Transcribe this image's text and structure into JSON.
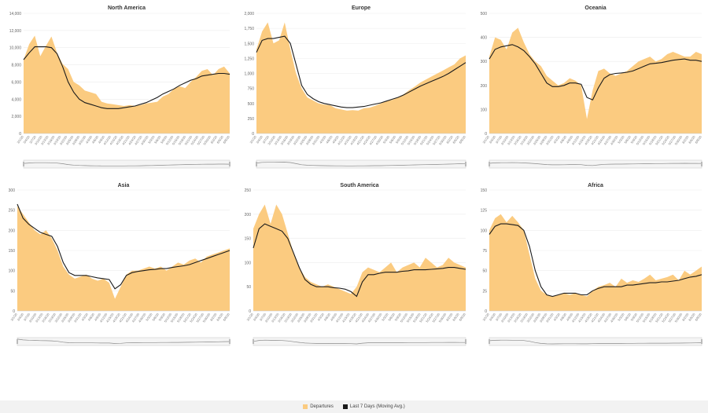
{
  "legend": {
    "departures_label": "Departures",
    "avg_label": "Last 7 Days (Moving Avg.)",
    "departures_color": "#fbcb80",
    "avg_color": "#1a1a1a"
  },
  "chart_data": [
    {
      "type": "area",
      "title": "North America",
      "ylim": [
        0,
        14000
      ],
      "yticks": [
        "0",
        "2,000",
        "4,000",
        "6,000",
        "8,000",
        "10,000",
        "12,000",
        "14,000"
      ],
      "ytick_values": [
        0,
        2000,
        4000,
        6000,
        8000,
        10000,
        12000,
        14000
      ],
      "x_start": "3/1/20",
      "x_end": "6/9/20",
      "series": [
        {
          "values": [
            8600,
            10400,
            11400,
            9000,
            10200,
            11300,
            9400,
            8100,
            7500,
            6000,
            5600,
            5000,
            4800,
            4600,
            3700,
            3500,
            3400,
            3300,
            3200,
            3300,
            3200,
            3300,
            3500,
            3600,
            3700,
            4300,
            4600,
            5200,
            5500,
            5300,
            6000,
            6600,
            7300,
            7500,
            6800,
            7500,
            7800,
            7000
          ]
        },
        {
          "values": [
            8600,
            9400,
            10100,
            10100,
            10100,
            10000,
            9300,
            7800,
            6000,
            4800,
            4000,
            3600,
            3400,
            3200,
            3000,
            2900,
            2900,
            2900,
            3000,
            3100,
            3200,
            3400,
            3600,
            3900,
            4200,
            4600,
            4900,
            5200,
            5600,
            5900,
            6200,
            6400,
            6700,
            6800,
            6900,
            7000,
            7000,
            6900
          ]
        }
      ]
    },
    {
      "type": "area",
      "title": "Europe",
      "ylim": [
        0,
        2000
      ],
      "yticks": [
        "0",
        "250",
        "500",
        "750",
        "1,000",
        "1,250",
        "1,500",
        "1,750",
        "2,000"
      ],
      "ytick_values": [
        0,
        250,
        500,
        750,
        1000,
        1250,
        1500,
        1750,
        2000
      ],
      "x_start": "3/1/20",
      "x_end": "6/9/20",
      "series": [
        {
          "values": [
            1400,
            1700,
            1850,
            1500,
            1550,
            1850,
            1400,
            1000,
            750,
            600,
            550,
            500,
            480,
            470,
            420,
            400,
            380,
            390,
            380,
            420,
            430,
            460,
            500,
            540,
            560,
            600,
            650,
            720,
            780,
            850,
            900,
            950,
            1000,
            1050,
            1100,
            1150,
            1250,
            1300
          ]
        },
        {
          "values": [
            1350,
            1550,
            1580,
            1580,
            1600,
            1620,
            1500,
            1150,
            800,
            650,
            580,
            530,
            500,
            480,
            460,
            440,
            430,
            430,
            440,
            450,
            470,
            490,
            510,
            540,
            570,
            600,
            640,
            690,
            740,
            790,
            830,
            870,
            910,
            950,
            1000,
            1060,
            1120,
            1180
          ]
        }
      ]
    },
    {
      "type": "area",
      "title": "Oceania",
      "ylim": [
        0,
        500
      ],
      "yticks": [
        "0",
        "100",
        "200",
        "300",
        "400",
        "500"
      ],
      "ytick_values": [
        0,
        100,
        200,
        300,
        400,
        500
      ],
      "x_start": "3/1/20",
      "x_end": "6/9/20",
      "series": [
        {
          "values": [
            320,
            400,
            390,
            350,
            420,
            440,
            380,
            330,
            300,
            280,
            240,
            220,
            200,
            210,
            230,
            220,
            200,
            60,
            180,
            260,
            270,
            250,
            240,
            250,
            260,
            280,
            300,
            310,
            320,
            300,
            310,
            330,
            340,
            330,
            320,
            320,
            340,
            330
          ]
        },
        {
          "values": [
            310,
            350,
            360,
            365,
            370,
            360,
            345,
            320,
            290,
            250,
            210,
            195,
            195,
            200,
            210,
            210,
            205,
            150,
            140,
            190,
            230,
            245,
            250,
            252,
            255,
            260,
            270,
            280,
            290,
            292,
            295,
            300,
            305,
            308,
            310,
            305,
            305,
            300
          ]
        }
      ]
    },
    {
      "type": "area",
      "title": "Asia",
      "ylim": [
        0,
        300
      ],
      "yticks": [
        "0",
        "50",
        "100",
        "150",
        "200",
        "250",
        "300"
      ],
      "ytick_values": [
        0,
        50,
        100,
        150,
        200,
        250,
        300
      ],
      "x_start": "3/1/20",
      "x_end": "6/9/20",
      "series": [
        {
          "values": [
            260,
            240,
            220,
            200,
            190,
            200,
            180,
            150,
            110,
            90,
            80,
            85,
            90,
            80,
            75,
            80,
            70,
            30,
            60,
            90,
            100,
            100,
            105,
            110,
            105,
            110,
            100,
            110,
            120,
            115,
            125,
            130,
            120,
            135,
            140,
            145,
            150,
            155
          ]
        },
        {
          "values": [
            265,
            230,
            215,
            205,
            195,
            190,
            185,
            160,
            120,
            95,
            88,
            88,
            88,
            85,
            82,
            80,
            78,
            55,
            65,
            88,
            95,
            98,
            100,
            102,
            103,
            105,
            105,
            108,
            110,
            112,
            115,
            120,
            125,
            130,
            135,
            140,
            145,
            150
          ]
        }
      ]
    },
    {
      "type": "area",
      "title": "South America",
      "ylim": [
        0,
        250
      ],
      "yticks": [
        "0",
        "50",
        "100",
        "150",
        "200",
        "250"
      ],
      "ytick_values": [
        0,
        50,
        100,
        150,
        200,
        250
      ],
      "x_start": "3/1/20",
      "x_end": "6/9/20",
      "series": [
        {
          "values": [
            170,
            200,
            220,
            180,
            220,
            200,
            160,
            120,
            90,
            70,
            60,
            55,
            50,
            55,
            50,
            45,
            40,
            35,
            50,
            80,
            90,
            85,
            80,
            90,
            100,
            80,
            90,
            95,
            100,
            90,
            110,
            100,
            90,
            95,
            110,
            100,
            95,
            90
          ]
        },
        {
          "values": [
            130,
            170,
            180,
            175,
            170,
            165,
            150,
            120,
            90,
            65,
            55,
            50,
            50,
            50,
            48,
            47,
            45,
            40,
            30,
            60,
            75,
            75,
            78,
            80,
            80,
            80,
            82,
            83,
            85,
            85,
            85,
            86,
            87,
            88,
            90,
            90,
            88,
            86
          ]
        }
      ]
    },
    {
      "type": "area",
      "title": "Africa",
      "ylim": [
        0,
        150
      ],
      "yticks": [
        "0",
        "25",
        "50",
        "75",
        "100",
        "125",
        "150"
      ],
      "ytick_values": [
        0,
        25,
        50,
        75,
        100,
        125,
        150
      ],
      "x_start": "3/1/20",
      "x_end": "6/9/20",
      "series": [
        {
          "values": [
            100,
            115,
            120,
            110,
            118,
            110,
            100,
            70,
            40,
            25,
            20,
            18,
            20,
            22,
            20,
            22,
            20,
            18,
            25,
            30,
            32,
            35,
            30,
            40,
            35,
            38,
            36,
            40,
            45,
            38,
            40,
            42,
            45,
            38,
            50,
            45,
            50,
            55
          ]
        },
        {
          "values": [
            95,
            105,
            108,
            108,
            107,
            106,
            100,
            80,
            50,
            30,
            20,
            18,
            20,
            22,
            22,
            22,
            20,
            20,
            25,
            28,
            30,
            30,
            30,
            30,
            32,
            32,
            33,
            34,
            35,
            35,
            36,
            36,
            37,
            38,
            40,
            42,
            43,
            45
          ]
        }
      ]
    }
  ]
}
